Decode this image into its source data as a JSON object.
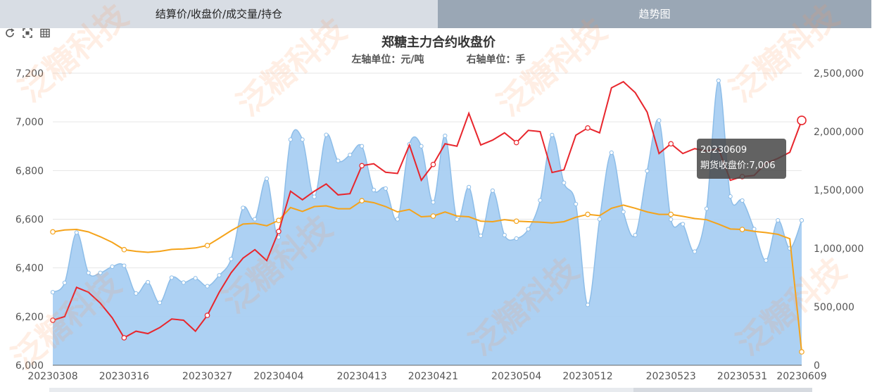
{
  "tabs": [
    {
      "label": "结算价/收盘价/成交量/持仓",
      "active": false
    },
    {
      "label": "趋势图",
      "active": true
    }
  ],
  "toolbox": [
    "refresh-icon",
    "zoom-icon",
    "data-view-icon"
  ],
  "watermark": "泛糖科技",
  "title": "郑糖主力合约收盘价",
  "units": {
    "left": "左轴单位：元/吨",
    "right": "右轴单位：手"
  },
  "tooltip": {
    "date": "20230609",
    "text": "期货收盘价:7,006"
  },
  "colors": {
    "close": "#e8262d",
    "settle": "#f5a31a",
    "volume_fill": "#a9cff2",
    "volume_line": "#8dbde8"
  },
  "chart_data": {
    "type": "line",
    "x": [
      "20230308",
      "20230309",
      "20230310",
      "20230313",
      "20230314",
      "20230315",
      "20230316",
      "20230317",
      "20230320",
      "20230321",
      "20230322",
      "20230323",
      "20230324",
      "20230327",
      "20230328",
      "20230329",
      "20230330",
      "20230331",
      "20230403",
      "20230404",
      "20230406",
      "20230407",
      "20230410",
      "20230411",
      "20230412",
      "20230413",
      "20230414",
      "20230417",
      "20230418",
      "20230419",
      "20230420",
      "20230421",
      "20230424",
      "20230425",
      "20230426",
      "20230427",
      "20230428",
      "20230504",
      "20230505",
      "20230508",
      "20230509",
      "20230510",
      "20230511",
      "20230512",
      "20230515",
      "20230516",
      "20230517",
      "20230518",
      "20230519",
      "20230522",
      "20230523",
      "20230524",
      "20230525",
      "20230526",
      "20230529",
      "20230530",
      "20230531",
      "20230601",
      "20230602",
      "20230605",
      "20230606",
      "20230607",
      "20230608",
      "20230609"
    ],
    "xtick_labels": [
      "20230308",
      "20230316",
      "20230327",
      "20230404",
      "20230413",
      "20230421",
      "20230504",
      "20230512",
      "20230523",
      "20230531",
      "20230609"
    ],
    "xtick_index": [
      0,
      6,
      13,
      19,
      26,
      32,
      39,
      45,
      52,
      58,
      63
    ],
    "yleft": {
      "min": 6000,
      "max": 7200,
      "ticks": [
        "6,000",
        "6,200",
        "6,400",
        "6,600",
        "6,800",
        "7,000",
        "7,200"
      ]
    },
    "yright": {
      "min": 0,
      "max": 2500000,
      "ticks": [
        "0",
        "500,000",
        "1,000,000",
        "1,500,000",
        "2,000,000",
        "2,500,000"
      ]
    },
    "grid": true,
    "series": [
      {
        "key": "close",
        "axis": "left",
        "values": [
          6185,
          6200,
          6320,
          6300,
          6255,
          6195,
          6113,
          6140,
          6130,
          6155,
          6190,
          6185,
          6140,
          6205,
          6300,
          6380,
          6440,
          6475,
          6430,
          6550,
          6715,
          6680,
          6715,
          6745,
          6700,
          6705,
          6820,
          6828,
          6793,
          6788,
          6905,
          6760,
          6825,
          6910,
          6900,
          7035,
          6905,
          6925,
          6955,
          6915,
          6965,
          6960,
          6792,
          6803,
          6945,
          6975,
          6955,
          7140,
          7165,
          7120,
          7040,
          6870,
          6910,
          6870,
          6890,
          6880,
          6890,
          6760,
          6775,
          6780,
          6830,
          6850,
          6875,
          7006
        ]
      },
      {
        "key": "settle",
        "axis": "left",
        "values": [
          6548,
          6556,
          6558,
          6548,
          6528,
          6505,
          6475,
          6468,
          6464,
          6468,
          6476,
          6478,
          6482,
          6492,
          6522,
          6553,
          6580,
          6583,
          6573,
          6595,
          6648,
          6632,
          6652,
          6655,
          6643,
          6643,
          6676,
          6668,
          6652,
          6630,
          6640,
          6610,
          6613,
          6630,
          6613,
          6610,
          6592,
          6590,
          6598,
          6592,
          6590,
          6588,
          6585,
          6590,
          6608,
          6620,
          6615,
          6645,
          6658,
          6645,
          6630,
          6620,
          6620,
          6612,
          6603,
          6598,
          6580,
          6560,
          6558,
          6550,
          6545,
          6538,
          6520,
          6055
        ]
      },
      {
        "key": "volume",
        "axis": "right",
        "values": [
          625000,
          706000,
          1136000,
          791000,
          791000,
          844000,
          852000,
          615000,
          711000,
          535000,
          750000,
          708000,
          745000,
          677000,
          770000,
          910000,
          1347000,
          1250000,
          1597000,
          1095000,
          1932000,
          1932000,
          1442000,
          1972000,
          1750000,
          1800000,
          1875000,
          1500000,
          1513000,
          1250000,
          1892000,
          1875000,
          1395000,
          1964000,
          1248000,
          1525000,
          1108000,
          1495000,
          1114000,
          1085000,
          1165000,
          1412000,
          1971000,
          1562000,
          1380000,
          517000,
          1250000,
          1820000,
          1313000,
          1114000,
          1663000,
          2095000,
          1248000,
          1208000,
          973000,
          1340000,
          2436000,
          1445000,
          1410000,
          1166000,
          897000,
          1240000,
          1000000,
          1240000
        ]
      }
    ]
  }
}
